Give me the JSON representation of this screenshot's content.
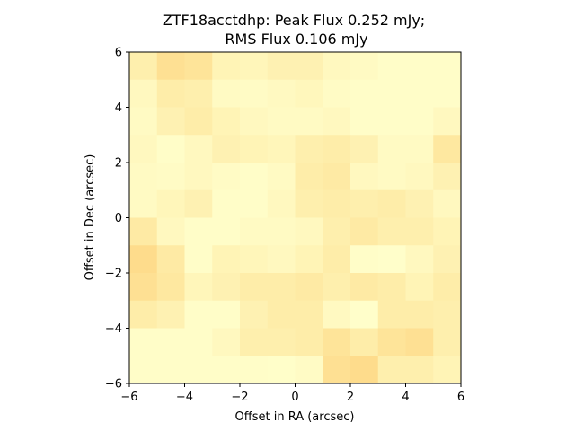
{
  "chart_data": {
    "type": "heatmap",
    "title_line1": "ZTF18acctdhp: Peak Flux 0.252 mJy;",
    "title_line2": "RMS Flux 0.106 mJy",
    "xlabel": "Offset in RA (arcsec)",
    "ylabel": "Offset in Dec (arcsec)",
    "xlim": [
      -6,
      6
    ],
    "ylim": [
      -6,
      6
    ],
    "xticks": [
      -6,
      -4,
      -2,
      0,
      2,
      4,
      6
    ],
    "yticks": [
      -6,
      -4,
      -2,
      0,
      2,
      4,
      6
    ],
    "xtick_labels": [
      "−6",
      "−4",
      "−2",
      "0",
      "2",
      "4",
      "6"
    ],
    "ytick_labels": [
      "−6",
      "−4",
      "−2",
      "0",
      "2",
      "4",
      "6"
    ],
    "colormap": "YlOrRd (light range)",
    "color_low": "#ffffcc",
    "color_mid": "#fee8a0",
    "color_high": "#fdc05e",
    "grid_n": 12,
    "pixel_size_arcsec": 1,
    "values_rows_top_to_bottom": [
      [
        0.35,
        0.6,
        0.55,
        0.25,
        0.2,
        0.3,
        0.3,
        0.15,
        0.1,
        0.05,
        0.05,
        0.05
      ],
      [
        0.15,
        0.4,
        0.35,
        0.1,
        0.08,
        0.12,
        0.18,
        0.08,
        0.05,
        0.05,
        0.05,
        0.05
      ],
      [
        0.1,
        0.3,
        0.4,
        0.25,
        0.15,
        0.1,
        0.1,
        0.15,
        0.05,
        0.05,
        0.05,
        0.15
      ],
      [
        0.15,
        0.05,
        0.15,
        0.3,
        0.25,
        0.2,
        0.35,
        0.4,
        0.3,
        0.1,
        0.1,
        0.5
      ],
      [
        0.1,
        0.08,
        0.15,
        0.08,
        0.05,
        0.1,
        0.4,
        0.45,
        0.15,
        0.1,
        0.15,
        0.3
      ],
      [
        0.1,
        0.2,
        0.3,
        0.05,
        0.05,
        0.15,
        0.35,
        0.4,
        0.35,
        0.4,
        0.3,
        0.15
      ],
      [
        0.45,
        0.15,
        0.05,
        0.05,
        0.1,
        0.1,
        0.15,
        0.35,
        0.45,
        0.35,
        0.35,
        0.25
      ],
      [
        0.65,
        0.45,
        0.05,
        0.25,
        0.2,
        0.15,
        0.25,
        0.4,
        0.05,
        0.02,
        0.15,
        0.3
      ],
      [
        0.6,
        0.5,
        0.2,
        0.3,
        0.4,
        0.4,
        0.45,
        0.35,
        0.45,
        0.4,
        0.25,
        0.4
      ],
      [
        0.4,
        0.3,
        0.05,
        0.05,
        0.3,
        0.4,
        0.4,
        0.12,
        0.02,
        0.4,
        0.4,
        0.35
      ],
      [
        0.05,
        0.05,
        0.05,
        0.15,
        0.35,
        0.35,
        0.4,
        0.55,
        0.4,
        0.55,
        0.6,
        0.35
      ],
      [
        0.05,
        0.05,
        0.05,
        0.05,
        0.05,
        0.03,
        0.08,
        0.6,
        0.65,
        0.35,
        0.35,
        0.25
      ]
    ]
  }
}
